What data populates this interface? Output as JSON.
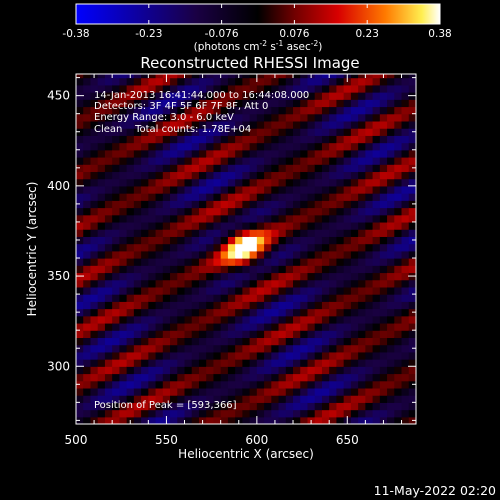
{
  "chart_data": {
    "type": "heatmap",
    "title": "Reconstructed RHESSI Image",
    "xlabel": "Heliocentric X (arcsec)",
    "ylabel": "Heliocentric Y (arcsec)",
    "xlim": [
      500,
      688
    ],
    "ylim": [
      268,
      462
    ],
    "xticks": [
      500,
      550,
      600,
      650
    ],
    "yticks": [
      300,
      350,
      400,
      450
    ],
    "colorbar": {
      "ticks": [
        "-0.38",
        "-0.23",
        "-0.076",
        "0.076",
        "0.23",
        "0.38"
      ],
      "range": [
        -0.38,
        0.38
      ],
      "unit_prefix": "(photons cm",
      "unit_sup1": "-2",
      "unit_mid1": " s",
      "unit_sup2": "-1",
      "unit_mid2": " asec",
      "unit_sup3": "-2",
      "unit_suffix": ")"
    },
    "annotations": [
      "14-Jan-2013 16:41:44.000 to 16:44:08.000",
      "Detectors: 3F 4F 5F 6F 7F 8F, Att 0",
      "Energy Range: 3.0 - 6.0 keV",
      "Clean    Total counts: 1.78E+04"
    ],
    "peak_label": "Position of Peak = [593,366]",
    "peak": {
      "x": 593,
      "y": 366,
      "value": 0.38
    },
    "stripe_model": {
      "orientation_deg": 27,
      "period_arcsec": 26,
      "background_value": -0.05,
      "stripe_amplitude": 0.19,
      "pixel_arcsec": 4
    },
    "colors": {
      "low": "#0000ff",
      "mid": "#000000",
      "high": "#ffffff"
    }
  },
  "footer": {
    "timestamp": "11-May-2022 02:20"
  }
}
